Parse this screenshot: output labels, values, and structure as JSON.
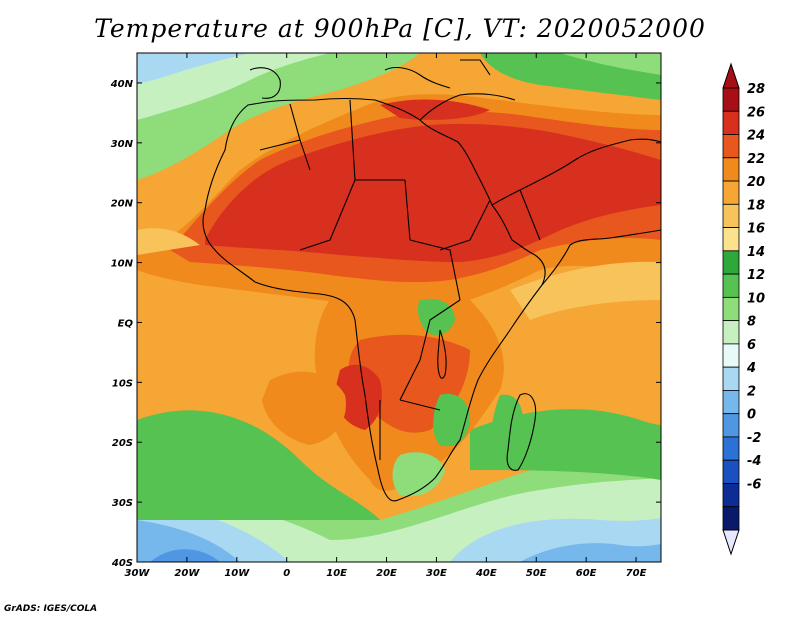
{
  "title": "Temperature at 900hPa [C], VT: 2020052000",
  "credit": "GrADS: IGES/COLA",
  "map": {
    "lon_range": [
      -30,
      75
    ],
    "lat_range": [
      -40,
      45
    ],
    "x_ticks": [
      "30W",
      "20W",
      "10W",
      "0",
      "10E",
      "20E",
      "30E",
      "40E",
      "50E",
      "60E",
      "70E"
    ],
    "x_tick_values": [
      -30,
      -20,
      -10,
      0,
      10,
      20,
      30,
      40,
      50,
      60,
      70
    ],
    "y_ticks": [
      "40S",
      "30S",
      "20S",
      "10S",
      "EQ",
      "10N",
      "20N",
      "30N",
      "40N"
    ],
    "y_tick_values": [
      -40,
      -30,
      -20,
      -10,
      0,
      10,
      20,
      30,
      40
    ]
  },
  "colorbar": {
    "labels": [
      "28",
      "26",
      "24",
      "22",
      "20",
      "18",
      "16",
      "14",
      "12",
      "10",
      "8",
      "6",
      "4",
      "2",
      "0",
      "-2",
      "-4",
      "-6"
    ],
    "colors": [
      "#a50f15",
      "#d7301f",
      "#e8571e",
      "#f08a1d",
      "#f5a634",
      "#f7c35a",
      "#fae38c",
      "#2ea83a",
      "#55c251",
      "#8edc7a",
      "#c6f0c0",
      "#e8faf8",
      "#a9d8f3",
      "#76b8ec",
      "#4f96e3",
      "#2b71d6",
      "#1a50bf",
      "#0d2c95",
      "#0a1a6a"
    ],
    "top_arrow_color": "#a50f15",
    "bottom_arrow_color": "#e6e8ff"
  }
}
